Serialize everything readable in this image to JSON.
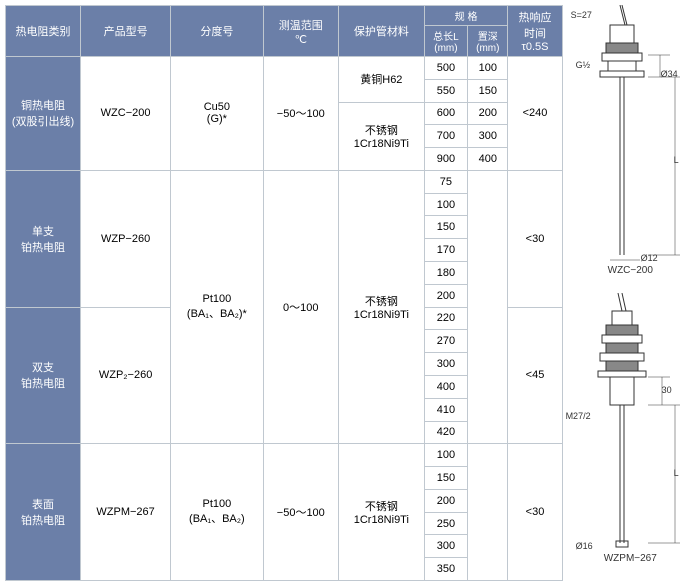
{
  "headers": {
    "category": "热电阻类别",
    "model": "产品型号",
    "gradation": "分度号",
    "temp_range": "测温范围\n℃",
    "tube_material": "保护管材料",
    "spec": "规 格",
    "length": "总长L\n(mm)",
    "depth": "置深\n(mm)",
    "response": "热响应\n时间\nτ0.5S"
  },
  "rows": [
    {
      "category": "铜热电阻\n(双股引出线)",
      "model": "WZC−200",
      "gradation": "Cu50\n(G)*",
      "temp_range": "−50～100",
      "materials": [
        "黄铜H62",
        "不锈钢\n1Cr18Ni9Ti"
      ],
      "lengths": [
        "500",
        "550",
        "600",
        "700",
        "900"
      ],
      "depths": [
        "100",
        "150",
        "200",
        "300",
        "400"
      ],
      "response": "<240"
    },
    {
      "category": "单支\n铂热电阻",
      "model": "WZP−260",
      "gradation_shared": "Pt100\n(BA₁、BA₂)*",
      "temp_range_shared": "0～100",
      "material_shared": "不锈钢\n1Cr18Ni9Ti",
      "lengths": [
        "75",
        "100",
        "150",
        "170",
        "180",
        "200"
      ],
      "response": "<30"
    },
    {
      "category": "双支\n铂热电阻",
      "model": "WZP₂−260",
      "lengths": [
        "220",
        "270",
        "300",
        "400",
        "410",
        "420"
      ],
      "response": "<45"
    },
    {
      "category": "表面\n铂热电阻",
      "model": "WZPM−267",
      "gradation": "Pt100\n(BA₁、BA₂)",
      "temp_range": "−50～100",
      "material": "不锈钢\n1Cr18Ni9Ti",
      "lengths": [
        "100",
        "150",
        "200",
        "250",
        "300",
        "350"
      ],
      "response": "<30"
    }
  ],
  "diagrams": {
    "top": {
      "s": "S=27",
      "g": "G½",
      "d1": "Ø34",
      "d2": "Ø12",
      "label": "WZC−200"
    },
    "bottom": {
      "m": "M27/2",
      "d1": "Ø16",
      "len": "30",
      "label": "WZPM−267"
    }
  }
}
